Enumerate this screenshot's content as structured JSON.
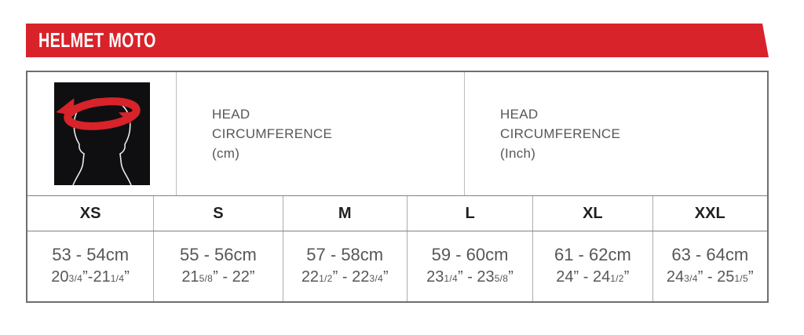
{
  "banner": {
    "title": "HELMET MOTO"
  },
  "colors": {
    "accent_red": "#d8232a",
    "text_gray": "#55575a",
    "text_dark": "#202022",
    "icon_background": "#0f0f11"
  },
  "table": {
    "header_cm": {
      "line1": "HEAD",
      "line2": "CIRCUMFERENCE",
      "line3": "(cm)"
    },
    "header_inch": {
      "line1": "HEAD",
      "line2": "CIRCUMFERENCE",
      "line3": "(Inch)"
    },
    "icon": "head-circumference-measure-icon",
    "columns": [
      {
        "size": "XS",
        "cm": "53 - 54cm",
        "inch": "20[3/4]”-21[1/4]”"
      },
      {
        "size": "S",
        "cm": "55 - 56cm",
        "inch": "21[5/8]” - 22”"
      },
      {
        "size": "M",
        "cm": "57 - 58cm",
        "inch": "22[1/2]” - 22[3/4]”"
      },
      {
        "size": "L",
        "cm": "59 - 60cm",
        "inch": "23[1/4]” - 23[5/8]”"
      },
      {
        "size": "XL",
        "cm": "61 - 62cm",
        "inch": "24” - 24[1/2]”"
      },
      {
        "size": "XXL",
        "cm": "63 - 64cm",
        "inch": "24[3/4]” - 25[1/5]”"
      }
    ]
  },
  "chart_data": {
    "type": "table",
    "title": "HELMET MOTO",
    "columns": [
      "XS",
      "S",
      "M",
      "L",
      "XL",
      "XXL"
    ],
    "rows": [
      {
        "label": "HEAD CIRCUMFERENCE (cm)",
        "values": [
          "53 - 54",
          "55 - 56",
          "57 - 58",
          "59 - 60",
          "61 - 62",
          "63 - 64"
        ]
      },
      {
        "label": "HEAD CIRCUMFERENCE (Inch)",
        "values": [
          "20 3/4 - 21 1/4",
          "21 5/8 - 22",
          "22 1/2 - 22 3/4",
          "23 1/4 - 23 5/8",
          "24 - 24 1/2",
          "24 3/4 - 25 1/5"
        ]
      }
    ]
  }
}
